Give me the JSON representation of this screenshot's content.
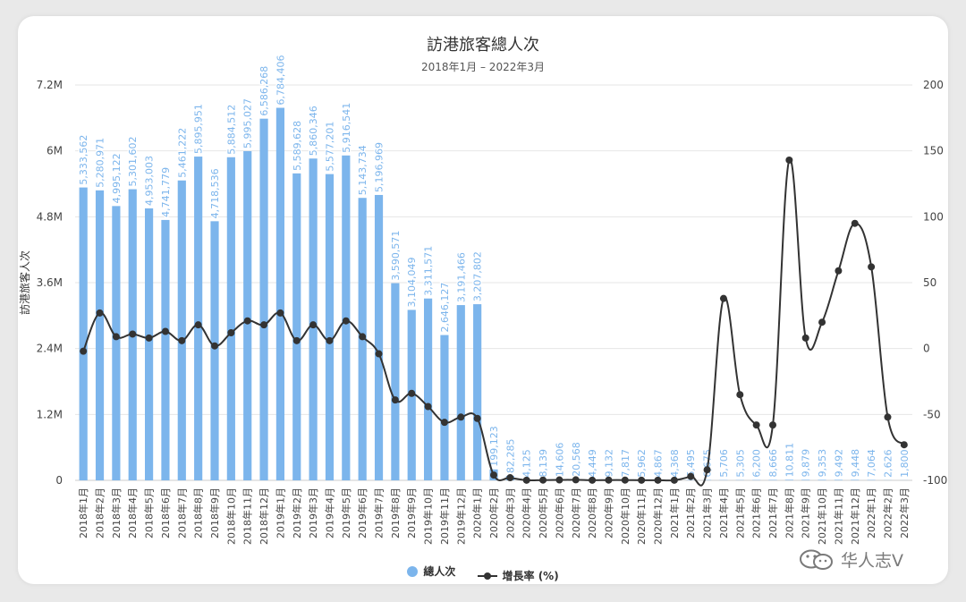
{
  "chart_data": {
    "type": "bar+line",
    "title": "訪港旅客總人次",
    "subtitle": "2018年1月 – 2022年3月",
    "ylabel": "訪港旅客人次",
    "ylim": [
      0,
      7200000
    ],
    "y2lim": [
      -100,
      200
    ],
    "y_ticks": [
      "0",
      "1.2M",
      "2.4M",
      "3.6M",
      "4.8M",
      "6M",
      "7.2M"
    ],
    "y2_ticks": [
      "-100",
      "-50",
      "0",
      "50",
      "100",
      "150",
      "200"
    ],
    "categories": [
      "2018年1月",
      "2018年2月",
      "2018年3月",
      "2018年4月",
      "2018年5月",
      "2018年6月",
      "2018年7月",
      "2018年8月",
      "2018年9月",
      "2018年10月",
      "2018年11月",
      "2018年12月",
      "2019年1月",
      "2019年2月",
      "2019年3月",
      "2019年4月",
      "2019年5月",
      "2019年6月",
      "2019年7月",
      "2019年8月",
      "2019年9月",
      "2019年10月",
      "2019年11月",
      "2019年12月",
      "2020年1月",
      "2020年2月",
      "2020年3月",
      "2020年4月",
      "2020年5月",
      "2020年6月",
      "2020年7月",
      "2020年8月",
      "2020年9月",
      "2020年10月",
      "2020年11月",
      "2020年12月",
      "2021年1月",
      "2021年2月",
      "2021年3月",
      "2021年4月",
      "2021年5月",
      "2021年6月",
      "2021年7月",
      "2021年8月",
      "2021年9月",
      "2021年10月",
      "2021年11月",
      "2021年12月",
      "2022年1月",
      "2022年2月",
      "2022年3月"
    ],
    "series": [
      {
        "name": "總人次",
        "type": "bar",
        "color": "#7cb5ec",
        "values": [
          5333562,
          5280971,
          4995122,
          5301602,
          4953003,
          4741779,
          5461222,
          5895951,
          4718536,
          5884512,
          5995027,
          6586268,
          6784406,
          5589628,
          5860346,
          5577201,
          5916541,
          5143734,
          5196969,
          3590571,
          3104049,
          3311571,
          2646127,
          3191466,
          3207802,
          199123,
          82285,
          4125,
          8139,
          14606,
          20568,
          4449,
          9132,
          7817,
          5962,
          4867,
          4368,
          6495,
          6675,
          5706,
          5305,
          6200,
          8666,
          10811,
          9879,
          9353,
          9492,
          9448,
          7064,
          2626,
          1800
        ],
        "labels": [
          "5,333,562",
          "5,280,971",
          "4,995,122",
          "5,301,602",
          "4,953,003",
          "4,741,779",
          "5,461,222",
          "5,895,951",
          "4,718,536",
          "5,884,512",
          "5,995,027",
          "6,586,268",
          "6,784,406",
          "5,589,628",
          "5,860,346",
          "5,577,201",
          "5,916,541",
          "5,143,734",
          "5,196,969",
          "3,590,571",
          "3,104,049",
          "3,311,571",
          "2,646,127",
          "3,191,466",
          "3,207,802",
          "199,123",
          "82,285",
          "4,125",
          "8,139",
          "14,606",
          "20,568",
          "4,449",
          "9,132",
          "7,817",
          "5,962",
          "4,867",
          "4,368",
          "6,495",
          "6,675",
          "5,706",
          "5,305",
          "6,200",
          "8,666",
          "10,811",
          "9,879",
          "9,353",
          "9,492",
          "9,448",
          "7,064",
          "2,626",
          "1,800"
        ]
      },
      {
        "name": "增長率 (%)",
        "type": "line",
        "color": "#333333",
        "values": [
          -2,
          27,
          9,
          11,
          8,
          13,
          6,
          18,
          2,
          12,
          21,
          18,
          27,
          6,
          18,
          6,
          21,
          9,
          -4,
          -39,
          -34,
          -44,
          -56,
          -52,
          -53,
          -96,
          -98,
          -99.9,
          -99.8,
          -99.7,
          -99.6,
          -99.9,
          -99.8,
          -99.8,
          -99.9,
          -99.9,
          -99.9,
          -97,
          -92,
          38,
          -35,
          -58,
          -58,
          143,
          8,
          20,
          59,
          95,
          62,
          -52,
          -73
        ]
      }
    ]
  },
  "legend": {
    "bar_label": "總人次",
    "line_label": "增長率 (%)"
  },
  "watermark": {
    "text": "华人志V",
    "icon": "wechat-icon"
  }
}
